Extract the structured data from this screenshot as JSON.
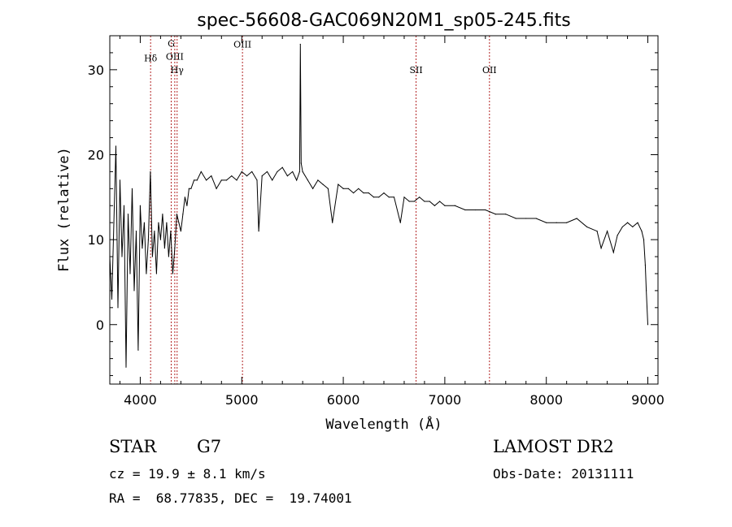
{
  "chart_data": {
    "type": "line",
    "title": "spec-56608-GAC069N20M1_sp05-245.fits",
    "xlabel": "Wavelength (Å)",
    "ylabel": "Flux (relative)",
    "xlim": [
      3700,
      9100
    ],
    "ylim": [
      -7,
      34
    ],
    "xticks": [
      4000,
      5000,
      6000,
      7000,
      8000,
      9000
    ],
    "yticks": [
      0,
      10,
      20,
      30
    ],
    "xtick_labels": [
      "4000",
      "5000",
      "6000",
      "7000",
      "8000",
      "9000"
    ],
    "ytick_labels": [
      "0",
      "10",
      "20",
      "30"
    ],
    "grid": false,
    "line_colors": {
      "spectrum": "#000000",
      "markers": "#b22222"
    },
    "markers": [
      {
        "label": "Hδ",
        "x": 4102,
        "label_y": 31
      },
      {
        "label": "G",
        "x": 4305,
        "label_y": 32.7
      },
      {
        "label": "OIII",
        "x": 4340,
        "label_y": 31.2
      },
      {
        "label": "Hγ",
        "x": 4363,
        "label_y": 29.6
      },
      {
        "label": "OIII",
        "x": 5007,
        "label_y": 32.6
      },
      {
        "label": "SII",
        "x": 6717,
        "label_y": 29.6
      },
      {
        "label": "OII",
        "x": 7440,
        "label_y": 29.6
      }
    ],
    "series": [
      {
        "x": [
          3700,
          3720,
          3740,
          3760,
          3780,
          3800,
          3820,
          3840,
          3860,
          3880,
          3900,
          3920,
          3940,
          3960,
          3980,
          4000,
          4020,
          4040,
          4060,
          4080,
          4100,
          4120,
          4140,
          4160,
          4180,
          4200,
          4220,
          4240,
          4260,
          4280,
          4300,
          4320,
          4340,
          4360,
          4380,
          4400,
          4420,
          4440,
          4460,
          4480,
          4500,
          4530,
          4560,
          4600,
          4650,
          4700,
          4750,
          4800,
          4850,
          4900,
          4950,
          5000,
          5050,
          5100,
          5150,
          5167,
          5200,
          5250,
          5300,
          5350,
          5400,
          5450,
          5500,
          5540,
          5570,
          5577,
          5585,
          5600,
          5650,
          5700,
          5750,
          5800,
          5850,
          5893,
          5950,
          6000,
          6050,
          6100,
          6150,
          6200,
          6250,
          6300,
          6350,
          6400,
          6450,
          6500,
          6563,
          6600,
          6650,
          6700,
          6750,
          6800,
          6850,
          6900,
          6950,
          7000,
          7100,
          7200,
          7300,
          7400,
          7500,
          7600,
          7700,
          7800,
          7900,
          8000,
          8100,
          8200,
          8300,
          8400,
          8500,
          8540,
          8600,
          8662,
          8700,
          8750,
          8800,
          8850,
          8900,
          8940,
          8960,
          8975,
          8985,
          9000
        ],
        "values": [
          8,
          3,
          12,
          21,
          2,
          17,
          8,
          14,
          -5,
          13,
          6,
          16,
          4,
          11,
          -3,
          14,
          9,
          12,
          6,
          10,
          18,
          8,
          11,
          6,
          12,
          10,
          13,
          9,
          12,
          8,
          11,
          6,
          9,
          13,
          12,
          11,
          13,
          15,
          14,
          16,
          16,
          17,
          17,
          18,
          17,
          17.5,
          16,
          17,
          17,
          17.5,
          17,
          18,
          17.5,
          18,
          17,
          11,
          17.5,
          18,
          17,
          18,
          18.5,
          17.5,
          18,
          17,
          18,
          33,
          19,
          18,
          17,
          16,
          17,
          16.5,
          16,
          12,
          16.5,
          16,
          16,
          15.5,
          16,
          15.5,
          15.5,
          15,
          15,
          15.5,
          15,
          15,
          12,
          15,
          14.5,
          14.5,
          15,
          14.5,
          14.5,
          14,
          14.5,
          14,
          14,
          13.5,
          13.5,
          13.5,
          13,
          13,
          12.5,
          12.5,
          12.5,
          12,
          12,
          12,
          12.5,
          11.5,
          11,
          9,
          11,
          8.5,
          10.5,
          11.5,
          12,
          11.5,
          12,
          11,
          10,
          7,
          4,
          0
        ]
      }
    ]
  },
  "info": {
    "object_type": "STAR",
    "subclass": "G7",
    "survey": "LAMOST DR2",
    "cz": "cz = 19.9 ± 8.1 km/s",
    "obs_date": "Obs-Date: 20131111",
    "coords": "RA =  68.77835, DEC =  19.74001"
  }
}
